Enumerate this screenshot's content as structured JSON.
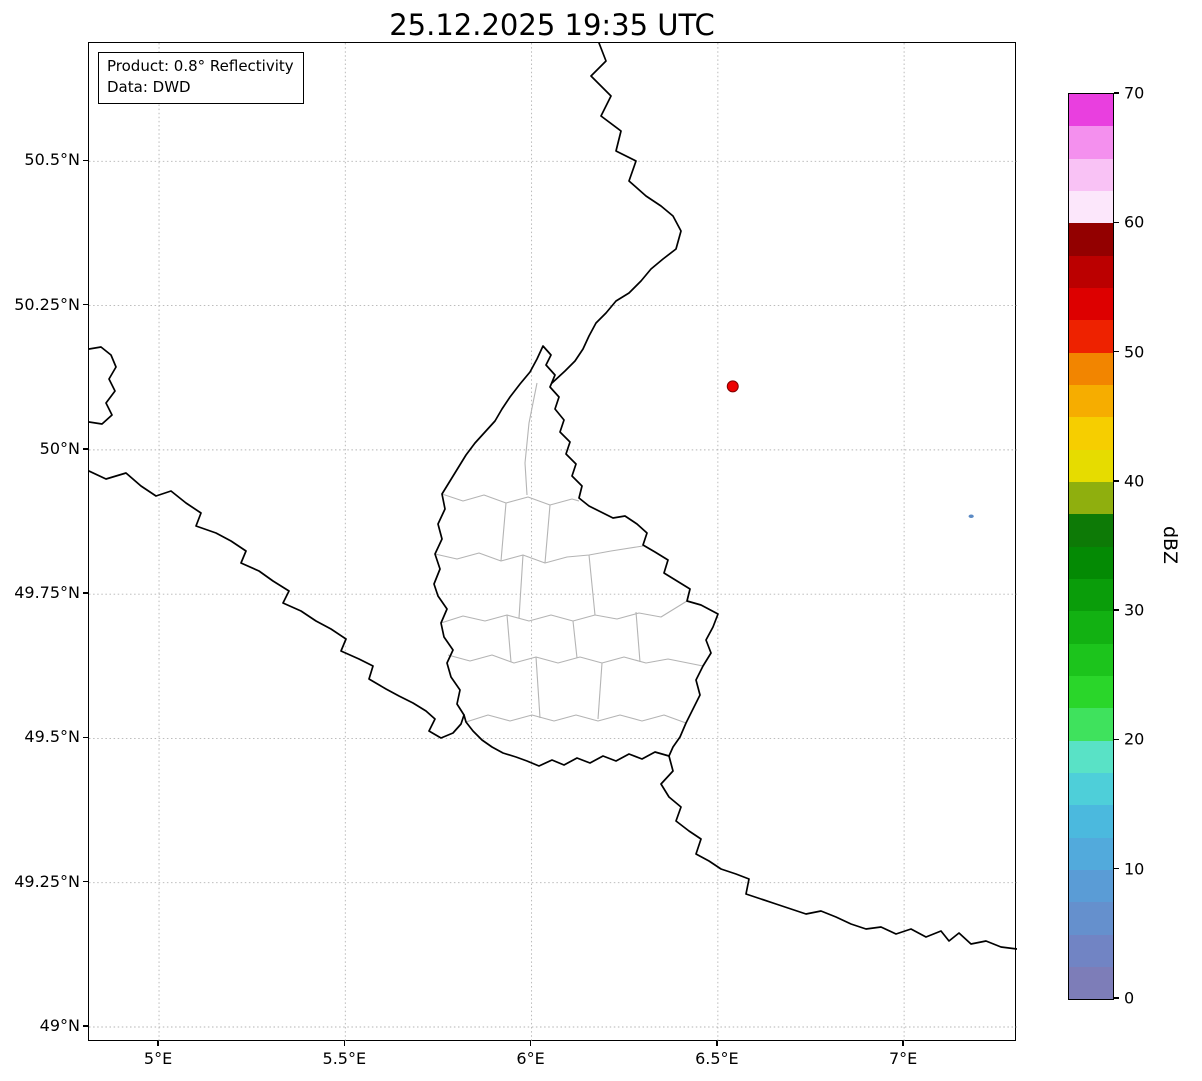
{
  "figure": {
    "title": "25.12.2025 19:35 UTC",
    "info_box": {
      "line1": "Product: 0.8° Reflectivity",
      "line2": "Data: DWD"
    }
  },
  "axes": {
    "xlim": [
      4.812,
      7.303
    ],
    "ylim": [
      48.974,
      50.705
    ],
    "xticks": [
      {
        "value": 5.0,
        "label": "5°E"
      },
      {
        "value": 5.5,
        "label": "5.5°E"
      },
      {
        "value": 6.0,
        "label": "6°E"
      },
      {
        "value": 6.5,
        "label": "6.5°E"
      },
      {
        "value": 7.0,
        "label": "7°E"
      }
    ],
    "yticks": [
      {
        "value": 49.0,
        "label": "49°N"
      },
      {
        "value": 49.25,
        "label": "49.25°N"
      },
      {
        "value": 49.5,
        "label": "49.5°N"
      },
      {
        "value": 49.75,
        "label": "49.75°N"
      },
      {
        "value": 50.0,
        "label": "50°N"
      },
      {
        "value": 50.25,
        "label": "50.25°N"
      },
      {
        "value": 50.5,
        "label": "50.5°N"
      }
    ],
    "grid": "dotted"
  },
  "colorbar": {
    "label": "dBZ",
    "min": 0,
    "max": 70,
    "ticks": [
      0,
      10,
      20,
      30,
      40,
      50,
      60,
      70
    ],
    "colors_bottom_to_top": [
      "#7d7db8",
      "#7184c4",
      "#6590cd",
      "#5a9cd6",
      "#52aadc",
      "#4bb9de",
      "#4ecfd9",
      "#59e2c6",
      "#3fe25d",
      "#2ad62a",
      "#1cc41c",
      "#12b112",
      "#0a9d0a",
      "#048a04",
      "#0d7a06",
      "#8faf0e",
      "#e6dc00",
      "#f6ce00",
      "#f6ad00",
      "#f28500",
      "#ee2200",
      "#dd0000",
      "#bb0000",
      "#930000",
      "#fce7fb",
      "#f9c2f5",
      "#f490ee",
      "#e93fdf"
    ]
  },
  "markers": [
    {
      "name": "radar-site-marker",
      "lon": 6.54,
      "lat": 50.11,
      "rx": 5.5,
      "ry": 5.5,
      "fill": "#ee0000",
      "stroke": "#7f0000"
    },
    {
      "name": "reflectivity-echo",
      "lon": 7.18,
      "lat": 49.885,
      "rx": 2.6,
      "ry": 1.8,
      "fill": "#5b8ac4",
      "stroke": "none"
    }
  ],
  "map": {
    "country_border_color": "#000000",
    "admin_border_color": "#b4b4b4",
    "grid_color": "#b3b3b3"
  }
}
